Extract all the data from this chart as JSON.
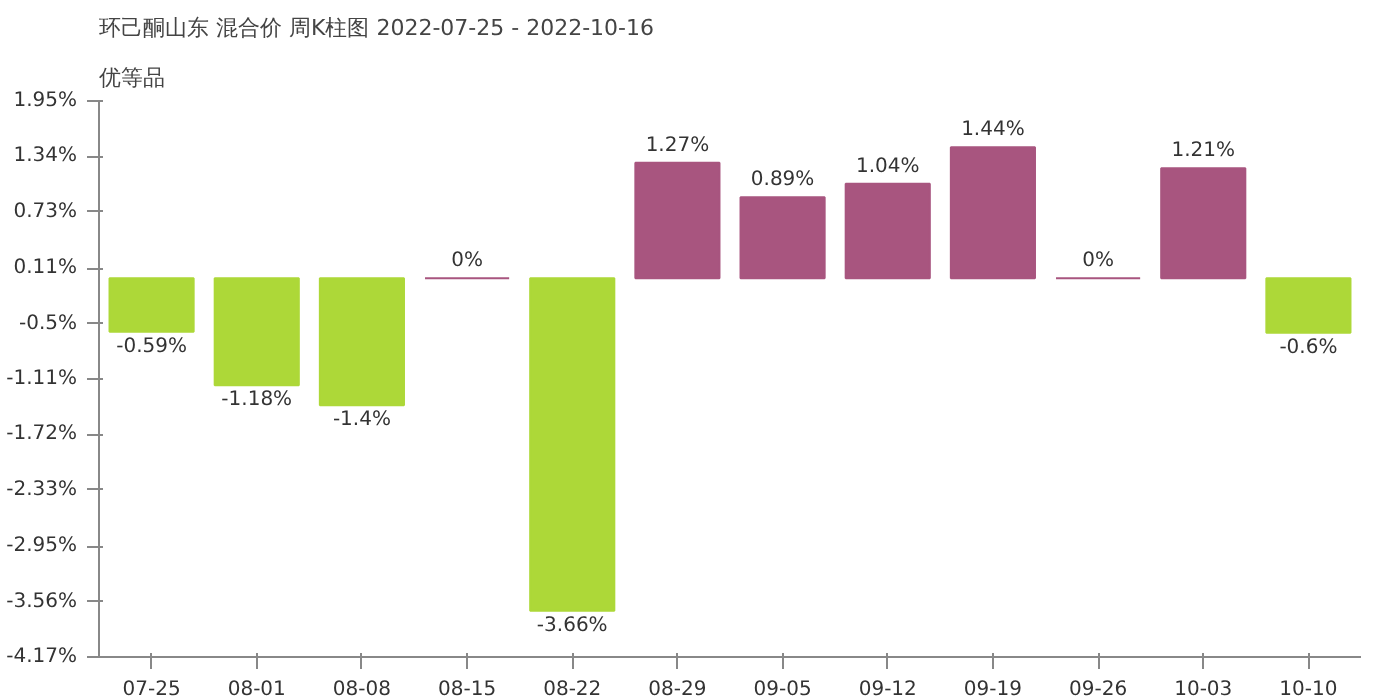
{
  "chart_data": {
    "type": "bar",
    "title": "环己酮山东 混合价 周K柱图 2022-07-25 - 2022-10-16",
    "subtitle": "优等品",
    "categories": [
      "07-25",
      "08-01",
      "08-08",
      "08-15",
      "08-22",
      "08-29",
      "09-05",
      "09-12",
      "09-19",
      "09-26",
      "10-03",
      "10-10"
    ],
    "values": [
      -0.59,
      -1.18,
      -1.4,
      0,
      -3.66,
      1.27,
      0.89,
      1.04,
      1.44,
      0,
      1.21,
      -0.6
    ],
    "value_labels": [
      "-0.59%",
      "-1.18%",
      "-1.4%",
      "0%",
      "-3.66%",
      "1.27%",
      "0.89%",
      "1.04%",
      "1.44%",
      "0%",
      "1.21%",
      "-0.6%"
    ],
    "colors": [
      "#add838",
      "#add838",
      "#add838",
      "#a8557f",
      "#add838",
      "#a8557f",
      "#a8557f",
      "#a8557f",
      "#a8557f",
      "#a8557f",
      "#a8557f",
      "#add838"
    ],
    "ylim": [
      -4.17,
      1.95
    ],
    "yticks": [
      {
        "value": 1.95,
        "label": "1.95%"
      },
      {
        "value": 1.34,
        "label": "1.34%"
      },
      {
        "value": 0.73,
        "label": "0.73%"
      },
      {
        "value": 0.11,
        "label": "0.11%"
      },
      {
        "value": -0.5,
        "label": "-0.5%"
      },
      {
        "value": -1.11,
        "label": "-1.11%"
      },
      {
        "value": -1.72,
        "label": "-1.72%"
      },
      {
        "value": -2.33,
        "label": "-2.33%"
      },
      {
        "value": -2.95,
        "label": "-2.95%"
      },
      {
        "value": -3.56,
        "label": "-3.56%"
      },
      {
        "value": -4.17,
        "label": "-4.17%"
      }
    ],
    "grid": false
  }
}
